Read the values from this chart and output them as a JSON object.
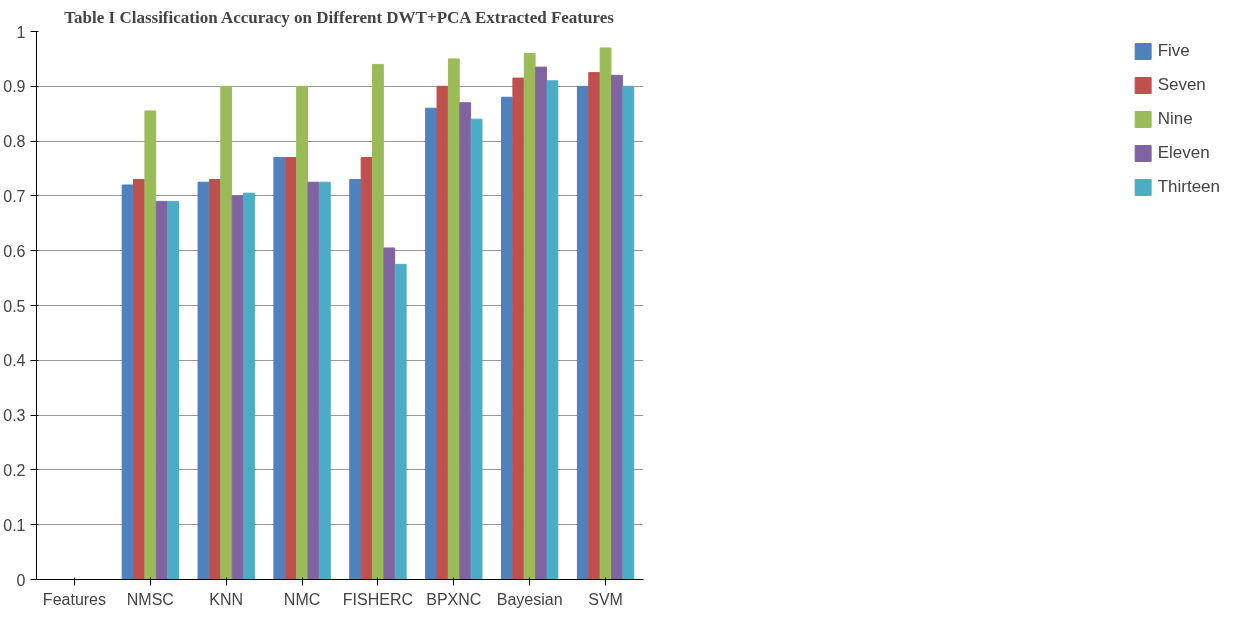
{
  "chart_data": {
    "type": "bar",
    "title": "Table I Classification Accuracy on Different DWT+PCA Extracted Features",
    "categories": [
      "Features",
      "NMSC",
      "KNN",
      "NMC",
      "FISHERC",
      "BPXNC",
      "Bayesian",
      "SVM"
    ],
    "series": [
      {
        "name": "Five",
        "color": "#4f81bd",
        "values": [
          null,
          0.72,
          0.725,
          0.77,
          0.73,
          0.86,
          0.88,
          0.9
        ]
      },
      {
        "name": "Seven",
        "color": "#c0504d",
        "values": [
          null,
          0.73,
          0.73,
          0.77,
          0.77,
          0.9,
          0.915,
          0.925
        ]
      },
      {
        "name": "Nine",
        "color": "#9bbb59",
        "values": [
          null,
          0.855,
          0.9,
          0.9,
          0.94,
          0.95,
          0.96,
          0.97
        ]
      },
      {
        "name": "Eleven",
        "color": "#8064a2",
        "values": [
          null,
          0.69,
          0.7,
          0.725,
          0.605,
          0.87,
          0.935,
          0.92
        ]
      },
      {
        "name": "Thirteen",
        "color": "#4bacc6",
        "values": [
          null,
          0.69,
          0.705,
          0.725,
          0.575,
          0.84,
          0.91,
          0.9
        ]
      }
    ],
    "ylim": [
      0,
      1
    ],
    "yticks": [
      0,
      {
        "value": 0.1,
        "label": "0.1"
      },
      {
        "value": 0.2,
        "label": "0.2"
      },
      {
        "value": 0.3,
        "label": "0.3"
      },
      {
        "value": 0.4,
        "label": "0.4"
      },
      {
        "value": 0.5,
        "label": "0.5"
      },
      {
        "value": 0.6,
        "label": "0.6"
      },
      {
        "value": 0.7,
        "label": "0.7"
      },
      {
        "value": 0.8,
        "label": "0.8"
      },
      {
        "value": 0.9,
        "label": "0.9"
      },
      1
    ],
    "grid": "y",
    "legend": "right"
  }
}
